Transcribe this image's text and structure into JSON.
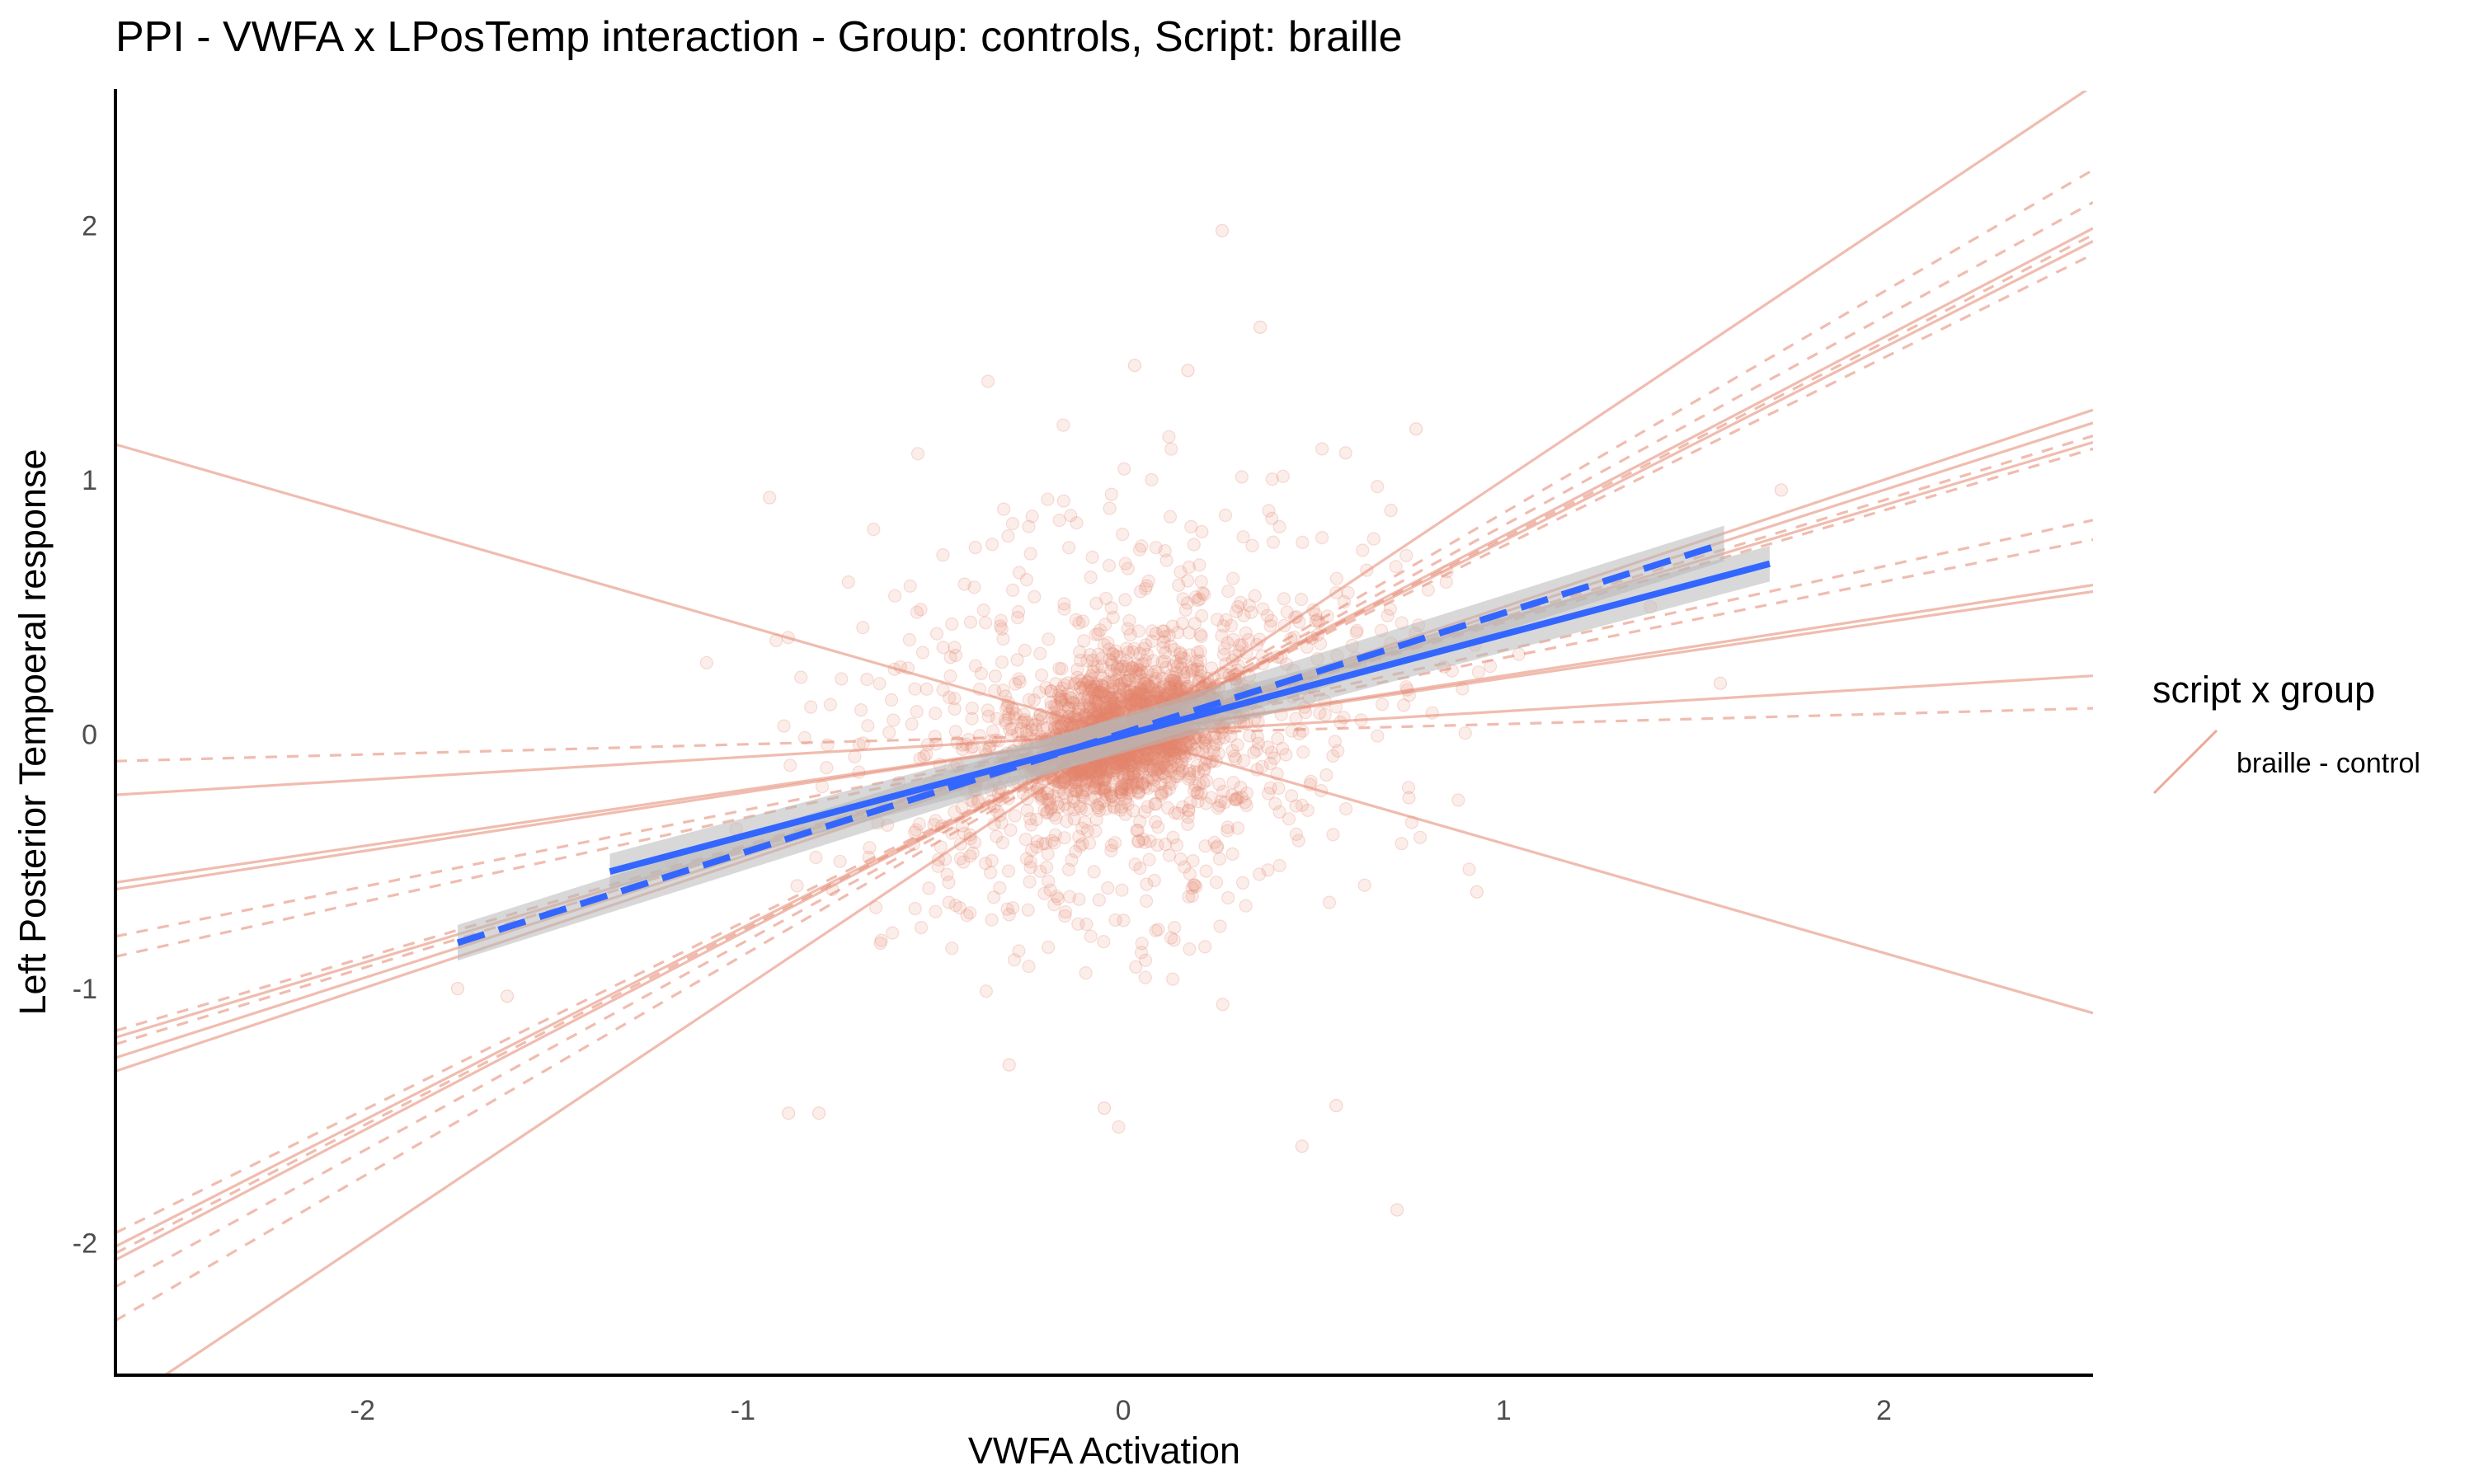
{
  "chart_data": {
    "type": "scatter",
    "title": "PPI - VWFA x LPosTemp interaction - Group: controls, Script: braille",
    "xlabel": "VWFA Activation",
    "ylabel": "Left Posterior Tempoeral response",
    "xlim": [
      -2.65,
      2.55
    ],
    "ylim": [
      -2.52,
      2.53
    ],
    "x_ticks": [
      -2,
      -1,
      0,
      1,
      2
    ],
    "y_ticks": [
      -2,
      -1,
      0,
      1,
      2
    ],
    "x_tick_labels": [
      "-2",
      "-1",
      "0",
      "1",
      "2"
    ],
    "y_tick_labels": [
      "-2",
      "-1",
      "0",
      "1",
      "2"
    ],
    "grid": false,
    "legend": {
      "title": "script x group",
      "position": "right",
      "entries": [
        {
          "label": "braille - control",
          "color": "#e3856e"
        }
      ]
    },
    "colors": {
      "points": "#e3856e",
      "subject_lines": "#e3856e",
      "group_fit": "#3366ff",
      "ribbon": "#b8b8b8"
    },
    "scatter": {
      "description_count": 2600,
      "center": [
        0.0,
        0.0
      ],
      "outliers": [
        {
          "x": 0.26,
          "y": 1.98
        },
        {
          "x": 0.36,
          "y": 1.6
        },
        {
          "x": 0.03,
          "y": 1.45
        },
        {
          "x": 0.17,
          "y": 1.43
        },
        {
          "x": -0.93,
          "y": 0.93
        },
        {
          "x": 1.73,
          "y": 0.96
        },
        {
          "x": 0.77,
          "y": 1.2
        },
        {
          "x": 0.72,
          "y": -1.87
        },
        {
          "x": 0.47,
          "y": -1.62
        },
        {
          "x": -0.05,
          "y": -1.47
        },
        {
          "x": -0.88,
          "y": -1.49
        },
        {
          "x": -0.8,
          "y": -1.49
        },
        {
          "x": -1.75,
          "y": -1.0
        },
        {
          "x": -1.62,
          "y": -1.03
        },
        {
          "x": 1.57,
          "y": 0.2
        },
        {
          "x": 0.93,
          "y": -0.62
        },
        {
          "x": -0.3,
          "y": -1.3
        },
        {
          "x": 0.56,
          "y": -1.46
        }
      ]
    },
    "subject_lines": [
      {
        "intercept": 0.0,
        "slope": -0.43,
        "style": "solid"
      },
      {
        "intercept": 0.0,
        "slope": 1.0,
        "style": "solid"
      },
      {
        "intercept": 0.0,
        "slope": 0.78,
        "style": "solid"
      },
      {
        "intercept": 0.0,
        "slope": 0.76,
        "style": "solid"
      },
      {
        "intercept": 0.0,
        "slope": 0.5,
        "style": "solid"
      },
      {
        "intercept": 0.0,
        "slope": 0.48,
        "style": "solid"
      },
      {
        "intercept": 0.0,
        "slope": 0.45,
        "style": "solid"
      },
      {
        "intercept": 0.0,
        "slope": 0.23,
        "style": "solid"
      },
      {
        "intercept": 0.0,
        "slope": 0.22,
        "style": "solid"
      },
      {
        "intercept": 0.0,
        "slope": 0.09,
        "style": "solid"
      },
      {
        "intercept": 0.0,
        "slope": 0.87,
        "style": "dashed"
      },
      {
        "intercept": 0.0,
        "slope": 0.82,
        "style": "dashed"
      },
      {
        "intercept": 0.0,
        "slope": 0.77,
        "style": "dashed"
      },
      {
        "intercept": 0.0,
        "slope": 0.74,
        "style": "dashed"
      },
      {
        "intercept": 0.0,
        "slope": 0.46,
        "style": "dashed"
      },
      {
        "intercept": 0.0,
        "slope": 0.44,
        "style": "dashed"
      },
      {
        "intercept": 0.0,
        "slope": 0.33,
        "style": "dashed"
      },
      {
        "intercept": 0.0,
        "slope": 0.3,
        "style": "dashed"
      },
      {
        "intercept": 0.0,
        "slope": 0.04,
        "style": "dashed"
      }
    ],
    "group_fits": [
      {
        "style": "solid",
        "x": [
          -1.35,
          1.7
        ],
        "y": [
          -0.54,
          0.67
        ]
      },
      {
        "style": "dashed",
        "x": [
          -1.75,
          1.58
        ],
        "y": [
          -0.82,
          0.75
        ]
      }
    ]
  }
}
